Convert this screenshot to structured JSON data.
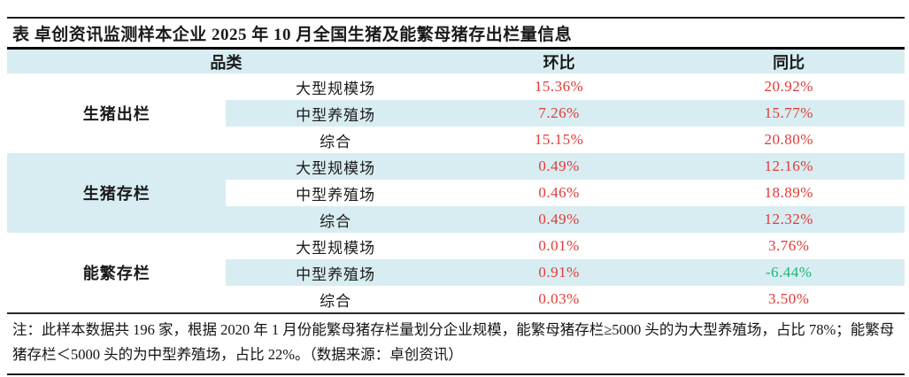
{
  "title": "表 卓创资讯监测样本企业 2025 年 10 月全国生猪及能繁母猪存出栏量信息",
  "table": {
    "headers": {
      "category": "品类",
      "mom": "环比",
      "yoy": "同比"
    },
    "groups": [
      {
        "name": "生猪出栏",
        "rows": [
          {
            "scope": "大型规模场",
            "mom": "15.36%",
            "yoy": "20.92%"
          },
          {
            "scope": "中型养殖场",
            "mom": "7.26%",
            "yoy": "15.77%"
          },
          {
            "scope": "综合",
            "mom": "15.15%",
            "yoy": "20.80%"
          }
        ]
      },
      {
        "name": "生猪存栏",
        "rows": [
          {
            "scope": "大型规模场",
            "mom": "0.49%",
            "yoy": "12.16%"
          },
          {
            "scope": "中型养殖场",
            "mom": "0.46%",
            "yoy": "18.89%"
          },
          {
            "scope": "综合",
            "mom": "0.49%",
            "yoy": "12.32%"
          }
        ]
      },
      {
        "name": "能繁存栏",
        "rows": [
          {
            "scope": "大型规模场",
            "mom": "0.01%",
            "yoy": "3.76%"
          },
          {
            "scope": "中型养殖场",
            "mom": "0.91%",
            "yoy": "-6.44%"
          },
          {
            "scope": "综合",
            "mom": "0.03%",
            "yoy": "3.50%"
          }
        ]
      }
    ]
  },
  "note": "注：此样本数据共 196 家，根据 2020 年 1 月份能繁母猪存栏量划分企业规模，能繁母猪存栏≥5000 头的为大型养殖场，占比 78%；能繁母猪存栏＜5000 头的为中型养殖场，占比 22%。（数据来源：卓创资讯）",
  "colors": {
    "stripe_blue": "#d8edf2",
    "increase_red": "#e03a35",
    "decrease_green": "#1fb473",
    "border_black": "#1c1c1c"
  }
}
